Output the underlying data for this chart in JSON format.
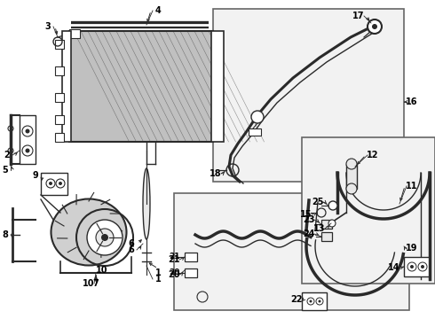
{
  "bg_color": "#ffffff",
  "line_color": "#2a2a2a",
  "gray_fill": "#c0c0c0",
  "light_gray": "#e8e8e8",
  "box_bg": "#f2f2f2",
  "fig_width": 4.9,
  "fig_height": 3.6,
  "dpi": 100
}
